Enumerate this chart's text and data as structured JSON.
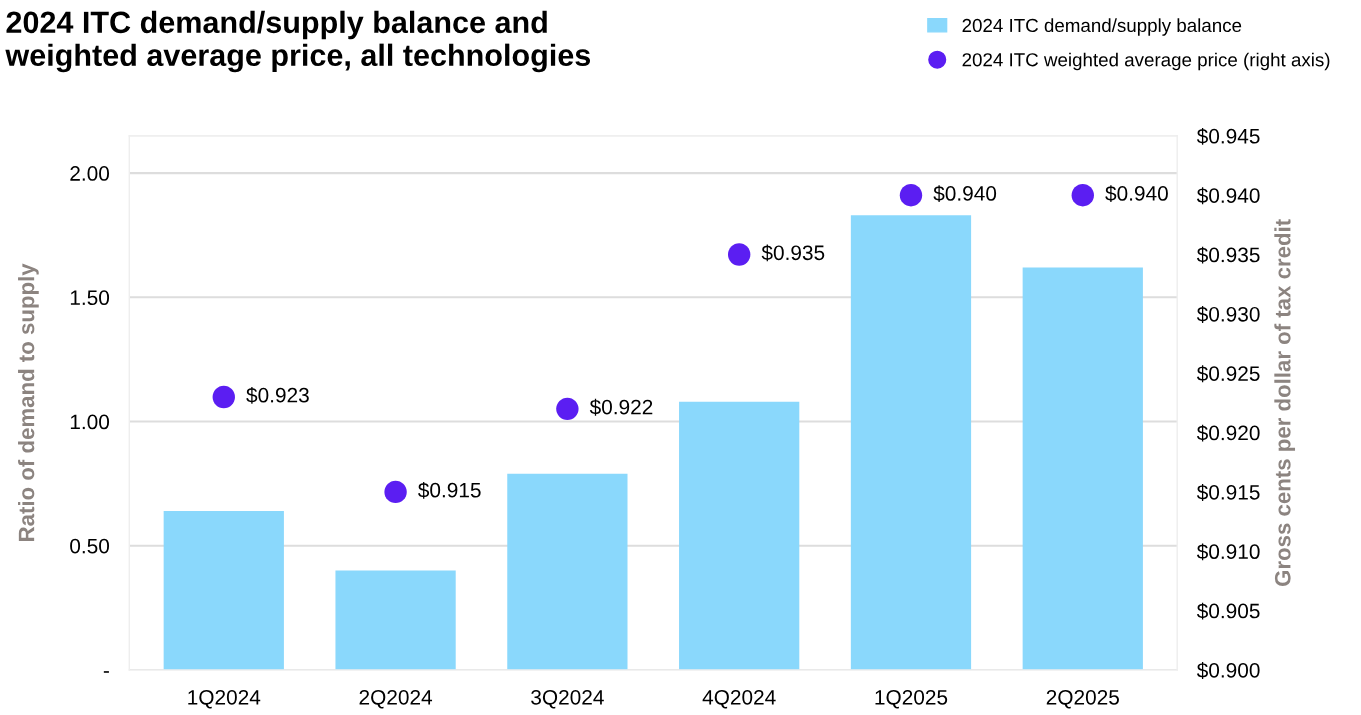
{
  "chart_data": {
    "type": "bar",
    "title": "2024 ITC demand/supply balance and\nweighted average price, all technologies",
    "categories": [
      "1Q2024",
      "2Q2024",
      "3Q2024",
      "4Q2024",
      "1Q2025",
      "2Q2025"
    ],
    "series": [
      {
        "name": "2024 ITC demand/supply balance",
        "color": "#8ad8fc",
        "values": [
          0.64,
          0.4,
          0.79,
          1.08,
          1.83,
          1.62
        ]
      },
      {
        "name": "2024 ITC weighted average price (right axis)",
        "type": "scatter",
        "axis": "y2",
        "color": "#5b1ef2",
        "values": [
          0.923,
          0.915,
          0.922,
          0.935,
          0.94,
          0.94
        ],
        "value_labels": [
          "$0.923",
          "$0.915",
          "$0.922",
          "$0.935",
          "$0.940",
          "$0.940"
        ]
      }
    ],
    "ylabel": "Ratio of demand to supply",
    "y2label": "Gross cents per dollar of tax credit",
    "ylim": [
      0,
      2.15
    ],
    "yticks": [
      {
        "value": 0,
        "label": "-"
      },
      {
        "value": 0.5,
        "label": "0.50"
      },
      {
        "value": 1.0,
        "label": "1.00"
      },
      {
        "value": 1.5,
        "label": "1.50"
      },
      {
        "value": 2.0,
        "label": "2.00"
      }
    ],
    "y2lim": [
      0.9,
      0.945
    ],
    "y2ticks": [
      {
        "value": 0.9,
        "label": "$0.900"
      },
      {
        "value": 0.905,
        "label": "$0.905"
      },
      {
        "value": 0.91,
        "label": "$0.910"
      },
      {
        "value": 0.915,
        "label": "$0.915"
      },
      {
        "value": 0.92,
        "label": "$0.920"
      },
      {
        "value": 0.925,
        "label": "$0.925"
      },
      {
        "value": 0.93,
        "label": "$0.930"
      },
      {
        "value": 0.935,
        "label": "$0.935"
      },
      {
        "value": 0.94,
        "label": "$0.940"
      },
      {
        "value": 0.945,
        "label": "$0.945"
      }
    ],
    "grid": "y",
    "legend": "top right",
    "marker": "circle"
  }
}
